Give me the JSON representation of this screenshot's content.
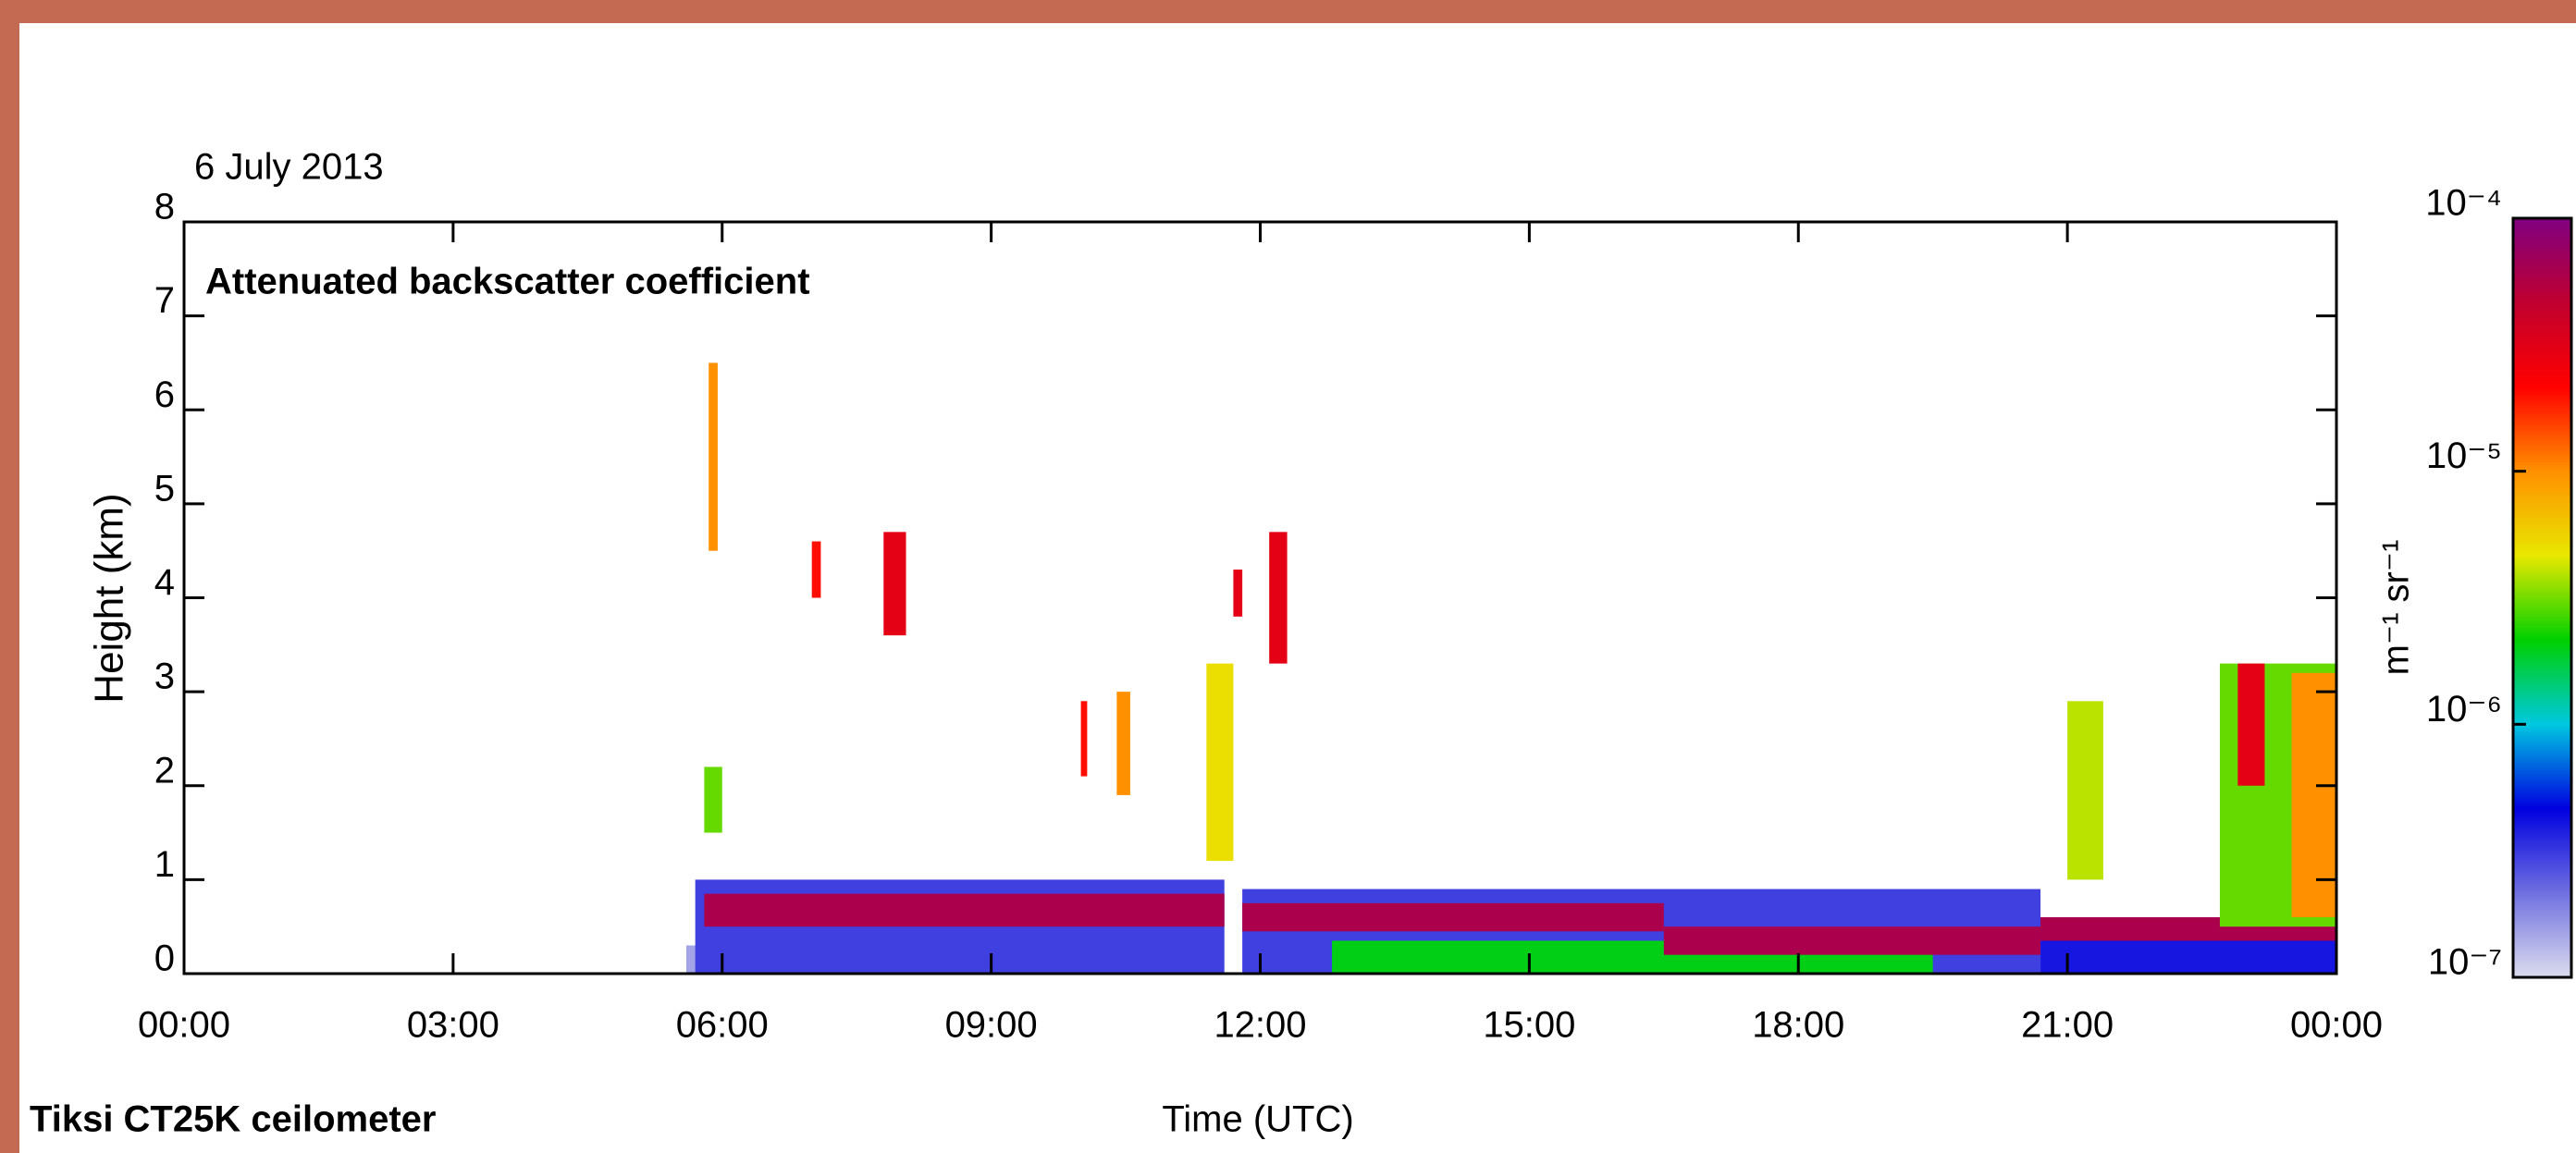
{
  "chart_data": {
    "type": "heatmap",
    "date": "6 July 2013",
    "title": "Attenuated backscatter coefficient",
    "instrument": "Tiksi CT25K ceilometer",
    "xlabel": "Time (UTC)",
    "ylabel": "Height (km)",
    "xlim": [
      0,
      24
    ],
    "xticks": [
      {
        "value": 0,
        "label": "00:00"
      },
      {
        "value": 3,
        "label": "03:00"
      },
      {
        "value": 6,
        "label": "06:00"
      },
      {
        "value": 9,
        "label": "09:00"
      },
      {
        "value": 12,
        "label": "12:00"
      },
      {
        "value": 15,
        "label": "15:00"
      },
      {
        "value": 18,
        "label": "18:00"
      },
      {
        "value": 21,
        "label": "21:00"
      },
      {
        "value": 24,
        "label": "00:00"
      }
    ],
    "ylim": [
      0,
      8
    ],
    "yticks": [
      0,
      1,
      2,
      3,
      4,
      5,
      6,
      7,
      8
    ],
    "colorbar": {
      "label": "m⁻¹ sr⁻¹",
      "log": true,
      "zlim": [
        1e-07,
        0.0001
      ],
      "ticks": [
        {
          "value": 1e-07,
          "label": "10⁻⁷"
        },
        {
          "value": 1e-06,
          "label": "10⁻⁶"
        },
        {
          "value": 1e-05,
          "label": "10⁻⁵"
        },
        {
          "value": 0.0001,
          "label": "10⁻⁴"
        }
      ],
      "colormap": [
        "#dcdcee",
        "#7070e0",
        "#0000e0",
        "#00c8e0",
        "#00d000",
        "#e8e800",
        "#ff9000",
        "#ff0000",
        "#c00030",
        "#800080"
      ]
    },
    "features": [
      {
        "x": [
          5.6,
          6.0
        ],
        "y": [
          0,
          0.3
        ],
        "value": 1.5e-07
      },
      {
        "x": [
          5.7,
          11.6
        ],
        "y": [
          0,
          1.0
        ],
        "value": 3e-07
      },
      {
        "x": [
          5.8,
          11.6
        ],
        "y": [
          0.5,
          0.85
        ],
        "value": 6e-05
      },
      {
        "x": [
          11.8,
          20.7
        ],
        "y": [
          0,
          0.9
        ],
        "value": 3e-07
      },
      {
        "x": [
          12.8,
          19.5
        ],
        "y": [
          0,
          0.35
        ],
        "value": 2e-06
      },
      {
        "x": [
          11.8,
          16.5
        ],
        "y": [
          0.45,
          0.75
        ],
        "value": 6e-05
      },
      {
        "x": [
          16.5,
          20.7
        ],
        "y": [
          0.2,
          0.5
        ],
        "value": 6e-05
      },
      {
        "x": [
          20.7,
          24
        ],
        "y": [
          0,
          0.6
        ],
        "value": 4e-07
      },
      {
        "x": [
          20.7,
          24
        ],
        "y": [
          0.35,
          0.6
        ],
        "value": 6e-05
      },
      {
        "x": [
          5.8,
          6.0
        ],
        "y": [
          1.5,
          2.2
        ],
        "value": 3e-06
      },
      {
        "x": [
          5.85,
          5.95
        ],
        "y": [
          4.5,
          6.5
        ],
        "value": 1e-05
      },
      {
        "x": [
          7.0,
          7.1
        ],
        "y": [
          4.0,
          4.6
        ],
        "value": 2e-05
      },
      {
        "x": [
          7.8,
          8.05
        ],
        "y": [
          3.6,
          4.7
        ],
        "value": 3e-05
      },
      {
        "x": [
          10.0,
          10.07
        ],
        "y": [
          2.1,
          2.9
        ],
        "value": 2e-05
      },
      {
        "x": [
          10.4,
          10.55
        ],
        "y": [
          1.9,
          3.0
        ],
        "value": 1e-05
      },
      {
        "x": [
          11.4,
          11.7
        ],
        "y": [
          1.2,
          3.3
        ],
        "value": 5e-06
      },
      {
        "x": [
          11.7,
          11.8
        ],
        "y": [
          3.8,
          4.3
        ],
        "value": 3e-05
      },
      {
        "x": [
          12.1,
          12.3
        ],
        "y": [
          3.3,
          4.7
        ],
        "value": 3e-05
      },
      {
        "x": [
          21.0,
          21.4
        ],
        "y": [
          1.0,
          2.9
        ],
        "value": 4e-06
      },
      {
        "x": [
          22.7,
          24
        ],
        "y": [
          0.5,
          3.3
        ],
        "value": 3e-06
      },
      {
        "x": [
          22.9,
          23.2
        ],
        "y": [
          2.0,
          3.3
        ],
        "value": 3e-05
      },
      {
        "x": [
          23.5,
          24
        ],
        "y": [
          0.6,
          3.2
        ],
        "value": 1e-05
      }
    ]
  }
}
